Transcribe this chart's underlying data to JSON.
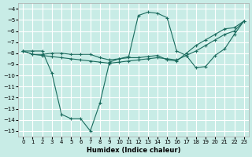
{
  "xlabel": "Humidex (Indice chaleur)",
  "xlim": [
    -0.5,
    23.5
  ],
  "ylim": [
    -15.5,
    -3.5
  ],
  "yticks": [
    -4,
    -5,
    -6,
    -7,
    -8,
    -9,
    -10,
    -11,
    -12,
    -13,
    -14,
    -15
  ],
  "xticks": [
    0,
    1,
    2,
    3,
    4,
    5,
    6,
    7,
    8,
    9,
    10,
    11,
    12,
    13,
    14,
    15,
    16,
    17,
    18,
    19,
    20,
    21,
    22,
    23
  ],
  "background_color": "#c8ece6",
  "grid_color": "#ffffff",
  "line_color": "#1a6b5e",
  "line1_x": [
    0,
    1,
    2,
    3,
    4,
    5,
    6,
    7,
    8,
    9,
    10,
    11,
    12,
    13,
    14,
    15,
    16,
    17,
    18,
    19,
    20,
    21,
    22,
    23
  ],
  "line1_y": [
    -7.8,
    -8.1,
    -8.2,
    -8.3,
    -8.4,
    -8.5,
    -8.6,
    -8.7,
    -8.8,
    -8.9,
    -8.8,
    -8.7,
    -8.6,
    -8.5,
    -8.4,
    -8.5,
    -8.6,
    -8.2,
    -7.8,
    -7.3,
    -6.8,
    -6.3,
    -6.0,
    -5.1
  ],
  "line2_x": [
    0,
    1,
    2,
    3,
    4,
    5,
    6,
    7,
    8,
    9,
    10,
    11,
    12,
    13,
    14,
    15,
    16,
    17,
    18,
    19,
    20,
    21,
    22,
    23
  ],
  "line2_y": [
    -7.8,
    -8.1,
    -8.1,
    -8.0,
    -8.0,
    -8.1,
    -8.1,
    -8.1,
    -8.4,
    -8.6,
    -8.5,
    -8.4,
    -8.4,
    -8.3,
    -8.2,
    -8.6,
    -8.7,
    -8.0,
    -7.3,
    -6.8,
    -6.3,
    -5.8,
    -5.7,
    -5.1
  ],
  "line3_x": [
    0,
    1,
    2,
    3,
    4,
    5,
    6,
    7,
    8,
    9,
    10,
    11,
    12,
    13,
    14,
    15,
    16,
    17,
    18,
    19,
    20,
    21,
    22,
    23
  ],
  "line3_y": [
    -7.8,
    -7.8,
    -7.8,
    -9.8,
    -13.5,
    -13.9,
    -13.9,
    -15.0,
    -12.5,
    -8.8,
    -8.5,
    -8.3,
    -4.6,
    -4.3,
    -4.4,
    -4.8,
    -7.8,
    -8.2,
    -9.3,
    -9.2,
    -8.2,
    -7.6,
    -6.3,
    -5.1
  ]
}
